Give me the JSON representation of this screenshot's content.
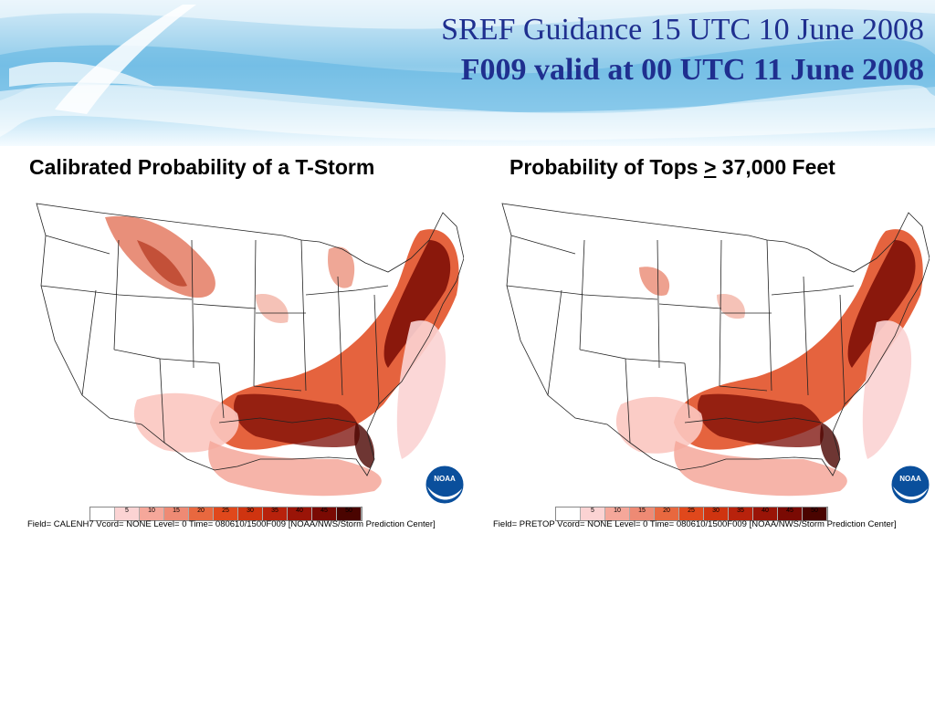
{
  "slide": {
    "title_line1": "SREF Guidance 15 UTC 10 June 2008",
    "title_line2": "F009 valid at 00 UTC 11 June 2008"
  },
  "left_panel": {
    "heading": "Calibrated Probability of a T-Storm",
    "field_line": "Field= CALENH7 Vcord= NONE Level= 0 Time= 080610/1500F009 [NOAA/NWS/Storm Prediction Center]",
    "logo_text": "NOAA"
  },
  "right_panel": {
    "heading_prefix": "Probability of Tops ",
    "heading_symbol": ">",
    "heading_suffix": " 37,000 Feet",
    "field_line": "Field= PRETOP Vcord= NONE Level= 0 Time= 080610/1500F009 [NOAA/NWS/Storm Prediction Center]",
    "logo_text": "NOAA"
  },
  "legend": {
    "labels": [
      "5",
      "10",
      "15",
      "20",
      "25",
      "30",
      "35",
      "40",
      "45",
      "50"
    ],
    "colors": [
      "#fbd3d3",
      "#f5a79a",
      "#ee8a74",
      "#e8683f",
      "#e0481c",
      "#cf3410",
      "#b8220c",
      "#9a1407",
      "#7a0a03",
      "#4a0400"
    ]
  }
}
